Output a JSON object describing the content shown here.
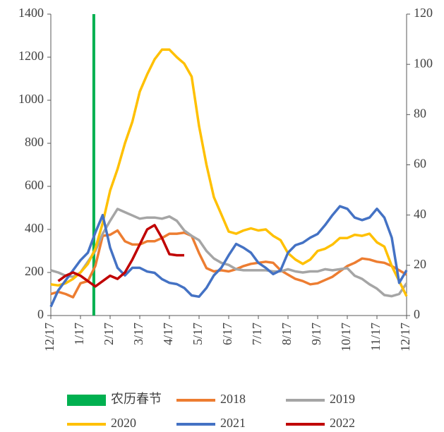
{
  "chart_data": {
    "type": "line",
    "x": [
      0,
      0.25,
      0.5,
      0.75,
      1,
      1.25,
      1.5,
      1.75,
      2,
      2.25,
      2.5,
      2.75,
      3,
      3.25,
      3.5,
      3.75,
      4,
      4.25,
      4.5,
      4.75,
      5,
      5.25,
      5.5,
      5.75,
      6,
      6.25,
      6.5,
      6.75,
      7,
      7.25,
      7.5,
      7.75,
      8,
      8.25,
      8.5,
      8.75,
      9,
      9.25,
      9.5,
      9.75,
      10,
      10.25,
      10.5,
      10.75,
      11,
      11.25,
      11.5,
      11.75,
      12
    ],
    "xlim": [
      0,
      12
    ],
    "xticks": [
      {
        "value": 0,
        "label": "12/17"
      },
      {
        "value": 1,
        "label": "1/17"
      },
      {
        "value": 2,
        "label": "2/17"
      },
      {
        "value": 3,
        "label": "3/17"
      },
      {
        "value": 4,
        "label": "4/17"
      },
      {
        "value": 5,
        "label": "5/17"
      },
      {
        "value": 6,
        "label": "6/17"
      },
      {
        "value": 7,
        "label": "7/17"
      },
      {
        "value": 8,
        "label": "8/17"
      },
      {
        "value": 9,
        "label": "9/17"
      },
      {
        "value": 10,
        "label": "10/17"
      },
      {
        "value": 11,
        "label": "11/17"
      },
      {
        "value": 12,
        "label": "12/17"
      }
    ],
    "ylim": [
      0,
      1400
    ],
    "yticks": [
      0,
      200,
      400,
      600,
      800,
      1000,
      1200,
      1400
    ],
    "y2lim": [
      0,
      120
    ],
    "y2ticks": [
      0,
      20,
      40,
      60,
      80,
      100,
      120
    ],
    "markers": [
      {
        "name": "农历春节",
        "color": "#00b050",
        "x": 1.45
      }
    ],
    "series": [
      {
        "name": "2018",
        "color": "#ed7d31",
        "values": [
          100,
          110,
          100,
          85,
          150,
          160,
          230,
          370,
          375,
          395,
          345,
          330,
          330,
          345,
          345,
          360,
          380,
          380,
          385,
          370,
          290,
          220,
          205,
          210,
          205,
          215,
          230,
          240,
          245,
          250,
          245,
          210,
          190,
          170,
          160,
          145,
          150,
          165,
          180,
          205,
          230,
          245,
          265,
          260,
          250,
          245,
          230,
          210,
          190
        ]
      },
      {
        "name": "2019",
        "color": "#a5a5a5",
        "values": [
          210,
          200,
          185,
          180,
          200,
          250,
          300,
          380,
          440,
          495,
          480,
          465,
          450,
          455,
          455,
          450,
          460,
          440,
          395,
          370,
          350,
          300,
          265,
          245,
          235,
          215,
          210,
          210,
          210,
          210,
          205,
          205,
          215,
          205,
          200,
          205,
          205,
          215,
          210,
          215,
          220,
          185,
          170,
          145,
          125,
          95,
          90,
          100,
          150
        ]
      },
      {
        "name": "2020",
        "color": "#ffc000",
        "values": [
          145,
          140,
          150,
          170,
          200,
          240,
          310,
          430,
          580,
          680,
          800,
          900,
          1040,
          1120,
          1190,
          1235,
          1235,
          1200,
          1170,
          1110,
          880,
          700,
          550,
          470,
          390,
          380,
          395,
          405,
          395,
          400,
          370,
          350,
          290,
          260,
          240,
          260,
          300,
          310,
          330,
          360,
          360,
          375,
          370,
          380,
          340,
          320,
          230,
          160,
          90
        ]
      },
      {
        "name": "2021",
        "color": "#4472c4",
        "axis": "y2",
        "values": [
          3.5,
          10,
          14,
          18,
          22,
          25,
          33,
          40,
          27,
          19,
          16,
          19,
          19,
          17.5,
          17,
          14.5,
          13,
          12.5,
          11,
          8,
          7.5,
          11,
          16,
          19,
          24,
          28.5,
          27,
          25,
          21,
          19,
          16.5,
          18,
          25,
          28,
          29,
          31,
          32.5,
          36,
          40,
          43.5,
          42.5,
          39,
          38,
          39,
          42.5,
          39,
          31,
          13,
          18
        ]
      },
      {
        "name": "2022",
        "color": "#c00000",
        "values": [
          null,
          160,
          185,
          200,
          185,
          160,
          135,
          160,
          185,
          170,
          200,
          260,
          330,
          400,
          420,
          360,
          285,
          280,
          280,
          null,
          null,
          null,
          null,
          null,
          null,
          null,
          null,
          null,
          null,
          null,
          null,
          null,
          null,
          null,
          null,
          null,
          null,
          null,
          null,
          null,
          null,
          null,
          null,
          null,
          null,
          null,
          null,
          null,
          null
        ]
      }
    ]
  }
}
